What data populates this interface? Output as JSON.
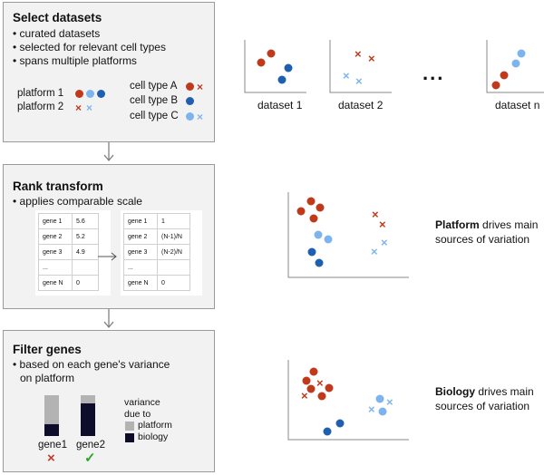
{
  "colors": {
    "red": "#c0391b",
    "blue": "#1f5fb0",
    "lightblue": "#7eb4ee",
    "box_bg": "#f2f2f2",
    "bar_gray": "#b3b3b3",
    "bar_dark": "#0e0c2b",
    "check_green": "#2aa52a",
    "cross_red": "#c0392b"
  },
  "step1": {
    "title": "Select datasets",
    "bullets": [
      "curated datasets",
      "selected for relevant cell types",
      "spans multiple platforms"
    ],
    "platform1": "platform 1",
    "platform2": "platform 2",
    "cellA": "cell type A",
    "cellB": "cell type B",
    "cellC": "cell type C"
  },
  "datasets": {
    "labels": [
      "dataset 1",
      "dataset 2",
      "dataset n"
    ],
    "ellipsis": "..."
  },
  "step2": {
    "title": "Rank transform",
    "bullets": [
      "applies comparable scale"
    ],
    "table_before": [
      [
        "gene 1",
        "5.6"
      ],
      [
        "gene 2",
        "5.2"
      ],
      [
        "gene 3",
        "4.9"
      ],
      [
        "...",
        ""
      ],
      [
        "gene N",
        "0"
      ]
    ],
    "table_after": [
      [
        "gene 1",
        "1"
      ],
      [
        "gene 2",
        "(N-1)/N"
      ],
      [
        "gene 3",
        "(N-2)/N"
      ],
      [
        "...",
        ""
      ],
      [
        "gene N",
        "0"
      ]
    ]
  },
  "platform_note": {
    "bold": "Platform",
    "rest1": " drives main",
    "rest2": "sources of variation"
  },
  "step3": {
    "title": "Filter genes",
    "bullets_line1": "based on each gene's variance",
    "bullets_line2": "on platform",
    "bar_label1": "gene1",
    "bar_label2": "gene2",
    "bars": [
      {
        "platform_fraction": 0.71,
        "biology_fraction": 0.29
      },
      {
        "platform_fraction": 0.2,
        "biology_fraction": 0.8
      }
    ],
    "legend_title1": "variance",
    "legend_title2": "due to",
    "legend_platform": "platform",
    "legend_biology": "biology",
    "cross_glyph": "×",
    "check_glyph": "✓"
  },
  "biology_note": {
    "bold": "Biology",
    "rest1": " drives main",
    "rest2": "sources of variation"
  }
}
